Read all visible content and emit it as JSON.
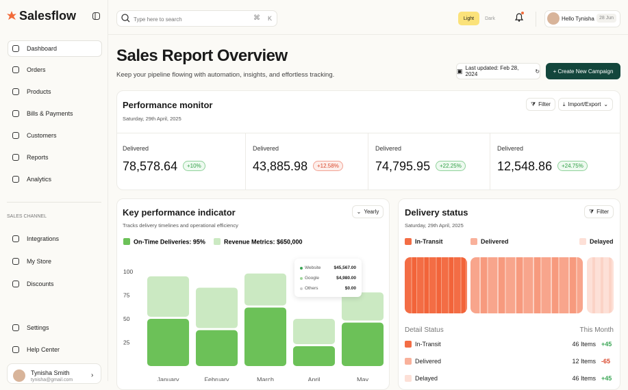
{
  "brand": "Salesflow",
  "search": {
    "placeholder": "Type here to search",
    "shortcut_cmd": "⌘",
    "shortcut_key": "K"
  },
  "theme": {
    "light": "Light",
    "dark": "Dark"
  },
  "user": {
    "greeting": "Hello Tynisha",
    "date": "28 Jun"
  },
  "nav": [
    "Dashboard",
    "Orders",
    "Products",
    "Bills & Payments",
    "Customers",
    "Reports",
    "Analytics"
  ],
  "sales_channel": {
    "heading": "SALES CHANNEL",
    "items": [
      "Integrations",
      "My Store",
      "Discounts"
    ]
  },
  "footer_nav": [
    "Settings",
    "Help Center"
  ],
  "profile": {
    "name": "Tynisha Smith",
    "email": "tynisha@gmail.com"
  },
  "header": {
    "title": "Sales Report Overview",
    "subtitle": "Keep your pipeline flowing with automation, insights, and effortless tracking.",
    "last_updated": "Last updated: Feb 28, 2024",
    "cta": "+ Create New Campaign"
  },
  "performance": {
    "title": "Performance monitor",
    "date": "Saturday, 29th April, 2025",
    "filter": "Filter",
    "export": "Import/Export",
    "stats": [
      {
        "label": "Delivered",
        "value": "78,578.64",
        "change": "+10%"
      },
      {
        "label": "Delivered",
        "value": "43,885.98",
        "change": "+12.58%"
      },
      {
        "label": "Delivered",
        "value": "74,795.95",
        "change": "+22.25%"
      },
      {
        "label": "Delivered",
        "value": "12,548.86",
        "change": "+24.75%"
      }
    ]
  },
  "kpi": {
    "title": "Key performance indicator",
    "period": "Yearly",
    "subtitle": "Tracks delivery timelines and operational efficiency",
    "tooltip": [
      {
        "name": "Website",
        "value": "$45,567.00"
      },
      {
        "name": "Google",
        "value": "$4,980.00"
      },
      {
        "name": "Others",
        "value": "$0.00"
      }
    ],
    "chart": {
      "type": "bar",
      "stacked": true,
      "categories": [
        "January",
        "February",
        "March",
        "April",
        "May"
      ],
      "series": [
        {
          "name": "On-Time Deliveries: 95%",
          "color": "#6cc158",
          "values": [
            50,
            38,
            62,
            21,
            46
          ]
        },
        {
          "name": "Revenue Metrics: $650,000",
          "color": "#cbe9c2",
          "values": [
            45,
            45,
            36,
            29,
            32
          ]
        }
      ],
      "ylim": [
        0,
        100
      ],
      "yticks": [
        25,
        50,
        75,
        100
      ]
    }
  },
  "delivery": {
    "title": "Delivery status",
    "filter": "Filter",
    "date": "Saturday, 29th April, 2025",
    "legend": [
      "In-Transit",
      "Delivered",
      "Delayed"
    ],
    "detail_heading": "Detail Status",
    "period": "This Month",
    "rows": [
      {
        "name": "In-Transit",
        "items": "46 Items",
        "change": "+45"
      },
      {
        "name": "Delivered",
        "items": "12 Items",
        "change": "-65"
      },
      {
        "name": "Delayed",
        "items": "46 Items",
        "change": "+45"
      }
    ]
  }
}
